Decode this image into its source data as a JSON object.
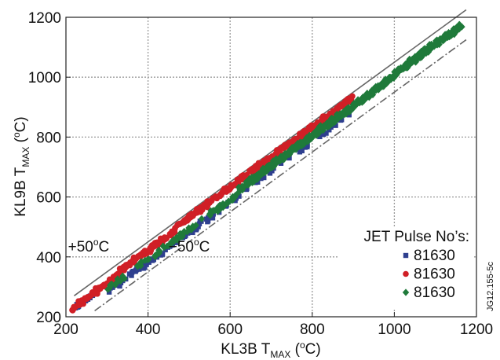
{
  "chart_data": {
    "type": "scatter",
    "xlabel": {
      "main": "KL3B T",
      "sub": "MAX",
      "unit_open": " (",
      "unit_sup": "o",
      "unit_close": "C)"
    },
    "ylabel": {
      "main": "KL9B T",
      "sub": "MAX",
      "unit_open": " (",
      "unit_sup": "o",
      "unit_close": "C)"
    },
    "xlim": [
      200,
      1200
    ],
    "ylim": [
      200,
      1200
    ],
    "xticks": [
      "200",
      "400",
      "600",
      "800",
      "1000",
      "1200"
    ],
    "yticks": [
      "200",
      "400",
      "600",
      "800",
      "1000",
      "1200"
    ],
    "grid": true,
    "reference_lines": [
      {
        "name": "y = x + 50",
        "offset": 50,
        "style": "solid",
        "color": "#666666",
        "x_range": [
          220,
          1175
        ]
      },
      {
        "name": "y = x - 50",
        "offset": -50,
        "style": "dashdot",
        "color": "#666666",
        "x_range": [
          270,
          1175
        ]
      }
    ],
    "annotations": [
      {
        "text": "+50",
        "sup": "o",
        "after": "C",
        "x": 205,
        "y": 418
      },
      {
        "text": "−50",
        "sup": "o",
        "after": "C",
        "x": 450,
        "y": 418
      }
    ],
    "legend": {
      "title": "JET Pulse No’s:",
      "placement": "bottom-right",
      "entries": [
        {
          "label": "81630",
          "marker": "square",
          "color": "#2e3f8f"
        },
        {
          "label": "81630",
          "marker": "circle",
          "color": "#d01f26"
        },
        {
          "label": "81630",
          "marker": "diamond",
          "color": "#1f7a3a"
        }
      ]
    },
    "series": [
      {
        "marker": "square",
        "color": "#2e3f8f",
        "segments": [
          {
            "x0": 215,
            "x1": 270,
            "offset": 8,
            "spread": 10,
            "n": 22
          },
          {
            "x0": 300,
            "x1": 620,
            "offset": -18,
            "spread": 14,
            "n": 85
          },
          {
            "x0": 620,
            "x1": 900,
            "offset": -14,
            "spread": 12,
            "n": 35
          }
        ]
      },
      {
        "marker": "circle",
        "color": "#d01f26",
        "segments": [
          {
            "x0": 215,
            "x1": 330,
            "offset": 12,
            "spread": 14,
            "n": 75
          },
          {
            "x0": 330,
            "x1": 470,
            "offset": 22,
            "spread": 14,
            "n": 85
          },
          {
            "x0": 470,
            "x1": 900,
            "offset": 32,
            "spread": 14,
            "n": 300
          }
        ]
      },
      {
        "marker": "diamond",
        "color": "#1f7a3a",
        "segments": [
          {
            "x0": 300,
            "x1": 620,
            "offset": -10,
            "spread": 14,
            "n": 100
          },
          {
            "x0": 620,
            "x1": 1000,
            "offset": 4,
            "spread": 16,
            "n": 360
          },
          {
            "x0": 1000,
            "x1": 1165,
            "offset": 10,
            "spread": 18,
            "n": 180
          }
        ]
      }
    ]
  },
  "figure_id": "JG12.155-5c"
}
